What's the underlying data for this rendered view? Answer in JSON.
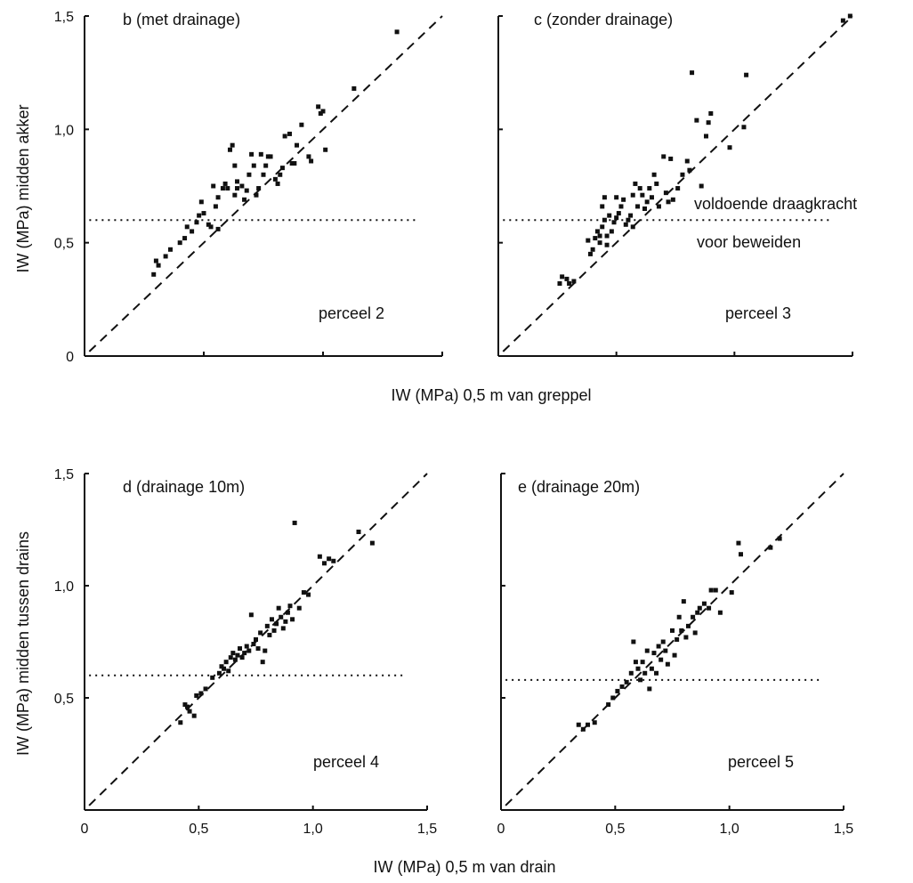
{
  "figure": {
    "top_xlabel": "IW (MPa) 0,5 m van greppel",
    "top_ylabel": "IW (MPa) midden akker",
    "bottom_xlabel": "IW (MPa) 0,5 m van drain",
    "bottom_ylabel": "IW (MPa) midden tussen drains",
    "threshold_label_line1": "voldoende draagkracht",
    "threshold_label_line2": "voor beweiden"
  },
  "chart_data": [
    {
      "type": "scatter",
      "title": "b (met drainage)",
      "annotation": "perceel 2",
      "xlim": [
        0,
        1.5
      ],
      "ylim": [
        0,
        1.5
      ],
      "x_ticks": [],
      "y_ticks": [
        "0",
        "0,5",
        "1,0",
        "1,5"
      ],
      "reference_line": "1:1 (dashed)",
      "threshold": 0.6,
      "marker_color": "#111111",
      "points": [
        [
          0.29,
          0.36
        ],
        [
          0.3,
          0.42
        ],
        [
          0.31,
          0.4
        ],
        [
          0.34,
          0.44
        ],
        [
          0.36,
          0.47
        ],
        [
          0.4,
          0.5
        ],
        [
          0.42,
          0.52
        ],
        [
          0.43,
          0.57
        ],
        [
          0.45,
          0.55
        ],
        [
          0.47,
          0.59
        ],
        [
          0.48,
          0.62
        ],
        [
          0.49,
          0.68
        ],
        [
          0.5,
          0.63
        ],
        [
          0.52,
          0.58
        ],
        [
          0.53,
          0.57
        ],
        [
          0.54,
          0.75
        ],
        [
          0.55,
          0.66
        ],
        [
          0.56,
          0.7
        ],
        [
          0.56,
          0.56
        ],
        [
          0.58,
          0.74
        ],
        [
          0.59,
          0.76
        ],
        [
          0.6,
          0.74
        ],
        [
          0.61,
          0.91
        ],
        [
          0.62,
          0.93
        ],
        [
          0.63,
          0.84
        ],
        [
          0.63,
          0.71
        ],
        [
          0.64,
          0.77
        ],
        [
          0.64,
          0.74
        ],
        [
          0.66,
          0.75
        ],
        [
          0.67,
          0.69
        ],
        [
          0.68,
          0.73
        ],
        [
          0.69,
          0.8
        ],
        [
          0.7,
          0.89
        ],
        [
          0.71,
          0.84
        ],
        [
          0.72,
          0.71
        ],
        [
          0.73,
          0.74
        ],
        [
          0.74,
          0.89
        ],
        [
          0.75,
          0.8
        ],
        [
          0.76,
          0.84
        ],
        [
          0.77,
          0.88
        ],
        [
          0.78,
          0.88
        ],
        [
          0.8,
          0.78
        ],
        [
          0.81,
          0.76
        ],
        [
          0.82,
          0.8
        ],
        [
          0.83,
          0.83
        ],
        [
          0.84,
          0.97
        ],
        [
          0.86,
          0.98
        ],
        [
          0.87,
          0.85
        ],
        [
          0.88,
          0.85
        ],
        [
          0.89,
          0.93
        ],
        [
          0.91,
          1.02
        ],
        [
          0.94,
          0.88
        ],
        [
          0.95,
          0.86
        ],
        [
          0.98,
          1.1
        ],
        [
          0.99,
          1.07
        ],
        [
          1.0,
          1.08
        ],
        [
          1.01,
          0.91
        ],
        [
          1.13,
          1.18
        ],
        [
          1.31,
          1.43
        ]
      ]
    },
    {
      "type": "scatter",
      "title": "c (zonder drainage)",
      "annotation": "perceel 3",
      "xlim": [
        0,
        1.5
      ],
      "ylim": [
        0,
        1.5
      ],
      "x_ticks": [],
      "y_ticks": [],
      "reference_line": "1:1 (dashed)",
      "threshold": 0.6,
      "marker_color": "#111111",
      "points": [
        [
          0.26,
          0.32
        ],
        [
          0.27,
          0.35
        ],
        [
          0.29,
          0.34
        ],
        [
          0.3,
          0.32
        ],
        [
          0.32,
          0.33
        ],
        [
          0.38,
          0.51
        ],
        [
          0.39,
          0.45
        ],
        [
          0.4,
          0.47
        ],
        [
          0.41,
          0.52
        ],
        [
          0.42,
          0.55
        ],
        [
          0.43,
          0.5
        ],
        [
          0.43,
          0.53
        ],
        [
          0.44,
          0.57
        ],
        [
          0.44,
          0.66
        ],
        [
          0.45,
          0.6
        ],
        [
          0.45,
          0.7
        ],
        [
          0.46,
          0.49
        ],
        [
          0.46,
          0.53
        ],
        [
          0.47,
          0.62
        ],
        [
          0.48,
          0.55
        ],
        [
          0.49,
          0.59
        ],
        [
          0.5,
          0.61
        ],
        [
          0.5,
          0.7
        ],
        [
          0.51,
          0.63
        ],
        [
          0.52,
          0.66
        ],
        [
          0.53,
          0.69
        ],
        [
          0.54,
          0.58
        ],
        [
          0.55,
          0.6
        ],
        [
          0.56,
          0.62
        ],
        [
          0.57,
          0.57
        ],
        [
          0.57,
          0.71
        ],
        [
          0.58,
          0.76
        ],
        [
          0.59,
          0.66
        ],
        [
          0.6,
          0.74
        ],
        [
          0.61,
          0.71
        ],
        [
          0.62,
          0.65
        ],
        [
          0.63,
          0.68
        ],
        [
          0.64,
          0.74
        ],
        [
          0.65,
          0.7
        ],
        [
          0.66,
          0.8
        ],
        [
          0.67,
          0.76
        ],
        [
          0.68,
          0.66
        ],
        [
          0.7,
          0.88
        ],
        [
          0.71,
          0.72
        ],
        [
          0.72,
          0.68
        ],
        [
          0.73,
          0.87
        ],
        [
          0.74,
          0.69
        ],
        [
          0.76,
          0.74
        ],
        [
          0.78,
          0.8
        ],
        [
          0.8,
          0.86
        ],
        [
          0.81,
          0.82
        ],
        [
          0.82,
          1.25
        ],
        [
          0.84,
          1.04
        ],
        [
          0.86,
          0.75
        ],
        [
          0.88,
          0.97
        ],
        [
          0.89,
          1.03
        ],
        [
          0.9,
          1.07
        ],
        [
          0.98,
          0.92
        ],
        [
          1.04,
          1.01
        ],
        [
          1.05,
          1.24
        ],
        [
          1.46,
          1.48
        ],
        [
          1.49,
          1.5
        ]
      ]
    },
    {
      "type": "scatter",
      "title": "d (drainage 10m)",
      "annotation": "perceel 4",
      "xlim": [
        0,
        1.5
      ],
      "ylim": [
        0,
        1.5
      ],
      "x_ticks": [
        "0",
        "0,5",
        "1,0",
        "1,5"
      ],
      "y_ticks": [
        "0,5",
        "1,0",
        "1,5"
      ],
      "reference_line": "1:1 (dashed)",
      "threshold": 0.6,
      "marker_color": "#111111",
      "points": [
        [
          0.42,
          0.39
        ],
        [
          0.44,
          0.47
        ],
        [
          0.45,
          0.46
        ],
        [
          0.46,
          0.44
        ],
        [
          0.48,
          0.42
        ],
        [
          0.49,
          0.51
        ],
        [
          0.51,
          0.52
        ],
        [
          0.53,
          0.54
        ],
        [
          0.56,
          0.59
        ],
        [
          0.59,
          0.61
        ],
        [
          0.6,
          0.64
        ],
        [
          0.61,
          0.63
        ],
        [
          0.62,
          0.66
        ],
        [
          0.63,
          0.62
        ],
        [
          0.64,
          0.68
        ],
        [
          0.65,
          0.7
        ],
        [
          0.66,
          0.67
        ],
        [
          0.67,
          0.69
        ],
        [
          0.68,
          0.72
        ],
        [
          0.69,
          0.68
        ],
        [
          0.7,
          0.7
        ],
        [
          0.71,
          0.73
        ],
        [
          0.72,
          0.71
        ],
        [
          0.73,
          0.87
        ],
        [
          0.74,
          0.74
        ],
        [
          0.75,
          0.76
        ],
        [
          0.76,
          0.72
        ],
        [
          0.77,
          0.79
        ],
        [
          0.78,
          0.66
        ],
        [
          0.79,
          0.71
        ],
        [
          0.8,
          0.82
        ],
        [
          0.81,
          0.78
        ],
        [
          0.82,
          0.85
        ],
        [
          0.83,
          0.8
        ],
        [
          0.84,
          0.83
        ],
        [
          0.85,
          0.9
        ],
        [
          0.86,
          0.86
        ],
        [
          0.87,
          0.81
        ],
        [
          0.88,
          0.84
        ],
        [
          0.89,
          0.88
        ],
        [
          0.9,
          0.91
        ],
        [
          0.91,
          0.85
        ],
        [
          0.92,
          1.28
        ],
        [
          0.94,
          0.9
        ],
        [
          0.96,
          0.97
        ],
        [
          0.98,
          0.96
        ],
        [
          1.03,
          1.13
        ],
        [
          1.05,
          1.1
        ],
        [
          1.07,
          1.12
        ],
        [
          1.09,
          1.11
        ],
        [
          1.2,
          1.24
        ],
        [
          1.26,
          1.19
        ]
      ]
    },
    {
      "type": "scatter",
      "title": "e (drainage 20m)",
      "annotation": "perceel 5",
      "xlim": [
        0,
        1.5
      ],
      "ylim": [
        0,
        1.5
      ],
      "x_ticks": [
        "0",
        "0,5",
        "1,0",
        "1,5"
      ],
      "y_ticks": [],
      "reference_line": "1:1 (dashed)",
      "threshold": 0.58,
      "marker_color": "#111111",
      "points": [
        [
          0.34,
          0.38
        ],
        [
          0.36,
          0.36
        ],
        [
          0.38,
          0.38
        ],
        [
          0.41,
          0.39
        ],
        [
          0.47,
          0.47
        ],
        [
          0.49,
          0.5
        ],
        [
          0.51,
          0.53
        ],
        [
          0.53,
          0.55
        ],
        [
          0.55,
          0.57
        ],
        [
          0.57,
          0.61
        ],
        [
          0.58,
          0.75
        ],
        [
          0.59,
          0.66
        ],
        [
          0.6,
          0.63
        ],
        [
          0.61,
          0.58
        ],
        [
          0.62,
          0.66
        ],
        [
          0.63,
          0.61
        ],
        [
          0.64,
          0.71
        ],
        [
          0.65,
          0.54
        ],
        [
          0.66,
          0.63
        ],
        [
          0.67,
          0.7
        ],
        [
          0.68,
          0.61
        ],
        [
          0.69,
          0.73
        ],
        [
          0.7,
          0.67
        ],
        [
          0.71,
          0.75
        ],
        [
          0.72,
          0.71
        ],
        [
          0.73,
          0.65
        ],
        [
          0.75,
          0.8
        ],
        [
          0.76,
          0.69
        ],
        [
          0.77,
          0.76
        ],
        [
          0.78,
          0.86
        ],
        [
          0.79,
          0.8
        ],
        [
          0.8,
          0.93
        ],
        [
          0.81,
          0.77
        ],
        [
          0.82,
          0.82
        ],
        [
          0.84,
          0.86
        ],
        [
          0.85,
          0.79
        ],
        [
          0.86,
          0.88
        ],
        [
          0.87,
          0.9
        ],
        [
          0.89,
          0.92
        ],
        [
          0.91,
          0.9
        ],
        [
          0.92,
          0.98
        ],
        [
          0.94,
          0.98
        ],
        [
          0.96,
          0.88
        ],
        [
          1.01,
          0.97
        ],
        [
          1.04,
          1.19
        ],
        [
          1.05,
          1.14
        ],
        [
          1.18,
          1.17
        ],
        [
          1.22,
          1.21
        ]
      ]
    }
  ]
}
